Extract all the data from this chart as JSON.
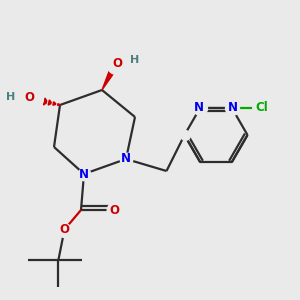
{
  "bg_color": "#eaeaea",
  "bond_color": "#2d2d2d",
  "bond_lw": 1.6,
  "N_color": "#0000ee",
  "O_color": "#cc0000",
  "Cl_color": "#00aa00",
  "H_color": "#4a8080",
  "figsize": [
    3.0,
    3.0
  ],
  "dpi": 100,
  "xlim": [
    0,
    10
  ],
  "ylim": [
    0,
    10
  ]
}
